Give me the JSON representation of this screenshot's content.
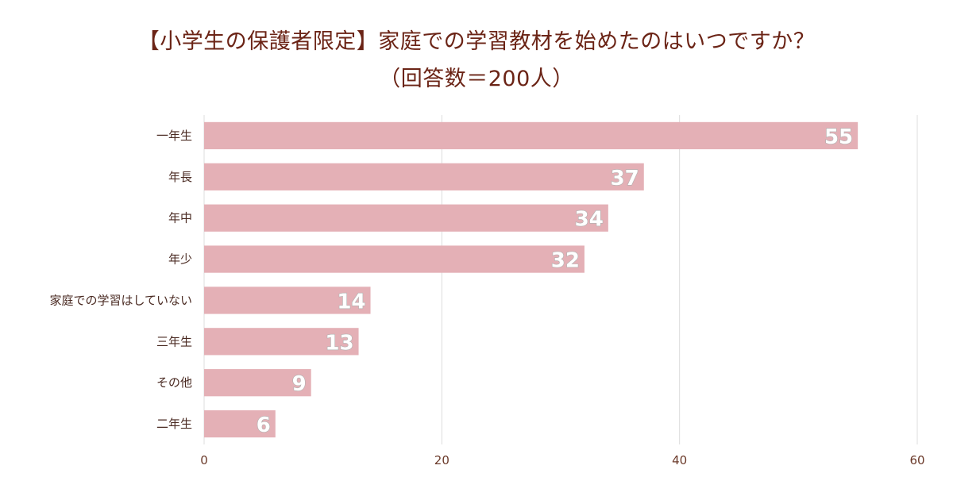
{
  "chart_data": {
    "type": "bar",
    "orientation": "horizontal",
    "title": "【小学生の保護者限定】家庭での学習教材を始めたのはいつですか？",
    "subtitle": "（回答数＝200人）",
    "categories": [
      "一年生",
      "年長",
      "年中",
      "年少",
      "家庭での学習はしていない",
      "三年生",
      "その他",
      "二年生"
    ],
    "values": [
      55,
      37,
      34,
      32,
      14,
      13,
      9,
      6
    ],
    "xlim": [
      0,
      60
    ],
    "xticks": [
      0,
      20,
      40,
      60
    ],
    "grid": true,
    "bar_color": "#e4b0b6"
  }
}
